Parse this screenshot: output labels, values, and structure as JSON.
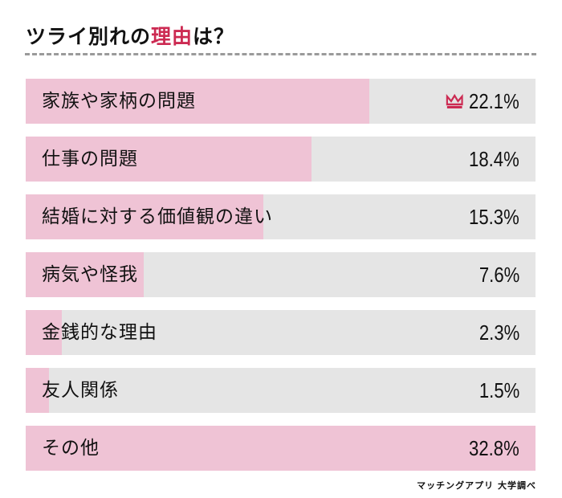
{
  "title": {
    "pre": "ツライ別れの",
    "highlight": "理由",
    "post": "は？"
  },
  "colors": {
    "fill": "#efc3d5",
    "track": "#e5e5e5",
    "accent": "#cc2a52"
  },
  "chart_data": {
    "type": "bar",
    "orientation": "horizontal",
    "title": "ツライ別れの理由は？",
    "categories": [
      "家族や家柄の問題",
      "仕事の問題",
      "結婚に対する価値観の違い",
      "病気や怪我",
      "金銭的な理由",
      "友人関係",
      "その他"
    ],
    "values": [
      22.1,
      18.4,
      15.3,
      7.6,
      2.3,
      1.5,
      32.8
    ],
    "value_labels": [
      "22.1%",
      "18.4%",
      "15.3%",
      "7.6%",
      "2.3%",
      "1.5%",
      "32.8%"
    ],
    "xlim": [
      0,
      32.8
    ],
    "top_marker": {
      "category": "家族や家柄の問題",
      "icon": "crown-icon"
    },
    "grid": false
  },
  "source": "マッチングアプリ 大学調べ"
}
